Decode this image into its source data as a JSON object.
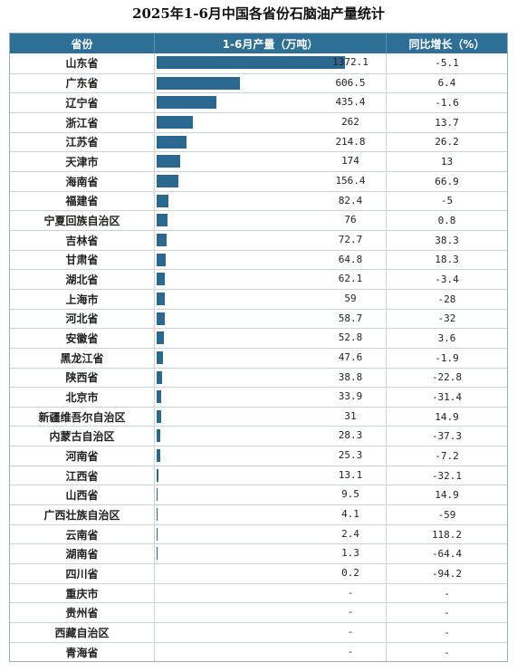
{
  "title": "2025年1-6月中国各省份石脑油产量统计",
  "headers": {
    "province": "省份",
    "output": "1-6月产量（万吨）",
    "growth": "同比增长（%）"
  },
  "colors": {
    "header_bg": "#2d6f95",
    "bar": "#2a6890"
  },
  "chart_data": {
    "type": "table",
    "title": "2025年1-6月中国各省份石脑油产量统计",
    "columns": [
      "省份",
      "1-6月产量（万吨）",
      "同比增长（%）"
    ],
    "rows": [
      {
        "province": "山东省",
        "output": "1372.1",
        "growth": "-5.1",
        "value": 1372.1
      },
      {
        "province": "广东省",
        "output": "606.5",
        "growth": "6.4",
        "value": 606.5
      },
      {
        "province": "辽宁省",
        "output": "435.4",
        "growth": "-1.6",
        "value": 435.4
      },
      {
        "province": "浙江省",
        "output": "262",
        "growth": "13.7",
        "value": 262
      },
      {
        "province": "江苏省",
        "output": "214.8",
        "growth": "26.2",
        "value": 214.8
      },
      {
        "province": "天津市",
        "output": "174",
        "growth": "13",
        "value": 174
      },
      {
        "province": "海南省",
        "output": "156.4",
        "growth": "66.9",
        "value": 156.4
      },
      {
        "province": "福建省",
        "output": "82.4",
        "growth": "-5",
        "value": 82.4
      },
      {
        "province": "宁夏回族自治区",
        "output": "76",
        "growth": "0.8",
        "value": 76
      },
      {
        "province": "吉林省",
        "output": "72.7",
        "growth": "38.3",
        "value": 72.7
      },
      {
        "province": "甘肃省",
        "output": "64.8",
        "growth": "18.3",
        "value": 64.8
      },
      {
        "province": "湖北省",
        "output": "62.1",
        "growth": "-3.4",
        "value": 62.1
      },
      {
        "province": "上海市",
        "output": "59",
        "growth": "-28",
        "value": 59
      },
      {
        "province": "河北省",
        "output": "58.7",
        "growth": "-32",
        "value": 58.7
      },
      {
        "province": "安徽省",
        "output": "52.8",
        "growth": "3.6",
        "value": 52.8
      },
      {
        "province": "黑龙江省",
        "output": "47.6",
        "growth": "-1.9",
        "value": 47.6
      },
      {
        "province": "陕西省",
        "output": "38.8",
        "growth": "-22.8",
        "value": 38.8
      },
      {
        "province": "北京市",
        "output": "33.9",
        "growth": "-31.4",
        "value": 33.9
      },
      {
        "province": "新疆维吾尔自治区",
        "output": "31",
        "growth": "14.9",
        "value": 31
      },
      {
        "province": "内蒙古自治区",
        "output": "28.3",
        "growth": "-37.3",
        "value": 28.3
      },
      {
        "province": "河南省",
        "output": "25.3",
        "growth": "-7.2",
        "value": 25.3
      },
      {
        "province": "江西省",
        "output": "13.1",
        "growth": "-32.1",
        "value": 13.1
      },
      {
        "province": "山西省",
        "output": "9.5",
        "growth": "14.9",
        "value": 9.5
      },
      {
        "province": "广西壮族自治区",
        "output": "4.1",
        "growth": "-59",
        "value": 4.1
      },
      {
        "province": "云南省",
        "output": "2.4",
        "growth": "118.2",
        "value": 2.4
      },
      {
        "province": "湖南省",
        "output": "1.3",
        "growth": "-64.4",
        "value": 1.3
      },
      {
        "province": "四川省",
        "output": "0.2",
        "growth": "-94.2",
        "value": 0.2
      },
      {
        "province": "重庆市",
        "output": "-",
        "growth": "-",
        "value": 0
      },
      {
        "province": "贵州省",
        "output": "-",
        "growth": "-",
        "value": 0
      },
      {
        "province": "西藏自治区",
        "output": "-",
        "growth": "-",
        "value": 0
      },
      {
        "province": "青海省",
        "output": "-",
        "growth": "-",
        "value": 0
      }
    ],
    "bar_max": 1372.1
  }
}
